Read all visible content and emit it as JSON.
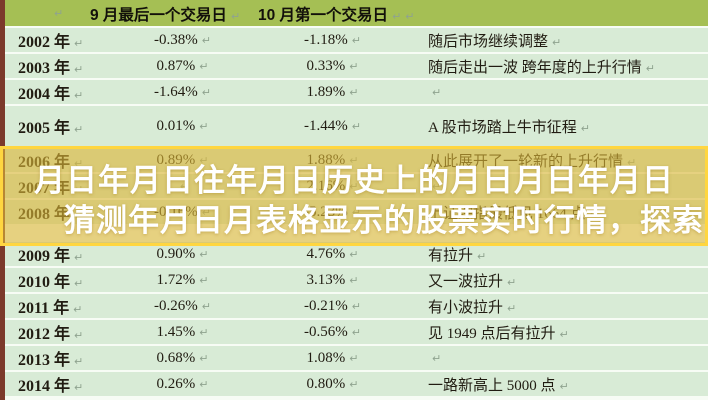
{
  "table": {
    "return_mark": "↵",
    "header": {
      "sep_col": "9 月最后一个交易日",
      "oct_col": "10 月第一个交易日"
    },
    "rows": [
      {
        "year": "2002 年",
        "sep": "-0.38%",
        "oct": "-1.18%",
        "comment": "随后市场继续调整"
      },
      {
        "year": "2003 年",
        "sep": "0.87%",
        "oct": "0.33%",
        "comment": "随后走出一波 跨年度的上升行情"
      },
      {
        "year": "2004 年",
        "sep": "-1.64%",
        "oct": "1.89%",
        "comment": ""
      },
      {
        "year": "2005 年",
        "sep": "0.01%",
        "oct": "-1.44%",
        "comment": "A 股市场踏上牛市征程"
      },
      {
        "year": "2006 年",
        "sep": "0.89%",
        "oct": "1.88%",
        "comment": "从此展开了一轮新的上升行情"
      },
      {
        "year": "2007 年",
        "sep": "",
        "oct": "2.16%",
        "comment": ""
      },
      {
        "year": "2008 年",
        "sep": "-0.16%",
        "oct": "-5.23%",
        "comment": "上证综指最低见 1664 点"
      },
      {
        "year": "2009 年",
        "sep": "0.90%",
        "oct": "4.76%",
        "comment": "有拉升"
      },
      {
        "year": "2010 年",
        "sep": "1.72%",
        "oct": "3.13%",
        "comment": "又一波拉升"
      },
      {
        "year": "2011 年",
        "sep": "-0.26%",
        "oct": "-0.21%",
        "comment": "有小波拉升"
      },
      {
        "year": "2012 年",
        "sep": "1.45%",
        "oct": "-0.56%",
        "comment": "见 1949 点后有拉升"
      },
      {
        "year": "2013 年",
        "sep": "0.68%",
        "oct": "1.08%",
        "comment": ""
      },
      {
        "year": "2014 年",
        "sep": "0.26%",
        "oct": "0.80%",
        "comment": "一路新高上 5000 点"
      }
    ]
  },
  "overlay": {
    "line1": "月日年月日往年月日历史上的月日月日年月日",
    "line2": "猜测年月日月表格显示的股票实时行情，探索"
  },
  "colors": {
    "header_bg": "#a5bf54",
    "row_bg": "#d8ebd6",
    "gap_bg": "#f7fcf5",
    "text": "#211c12",
    "mark": "#8fa38f",
    "left_strip": "#7c3a2b",
    "overlay_border": "#ffd640",
    "overlay_bg": "rgba(219,182,57,0.62)",
    "overlay_text": "#ffffff"
  }
}
